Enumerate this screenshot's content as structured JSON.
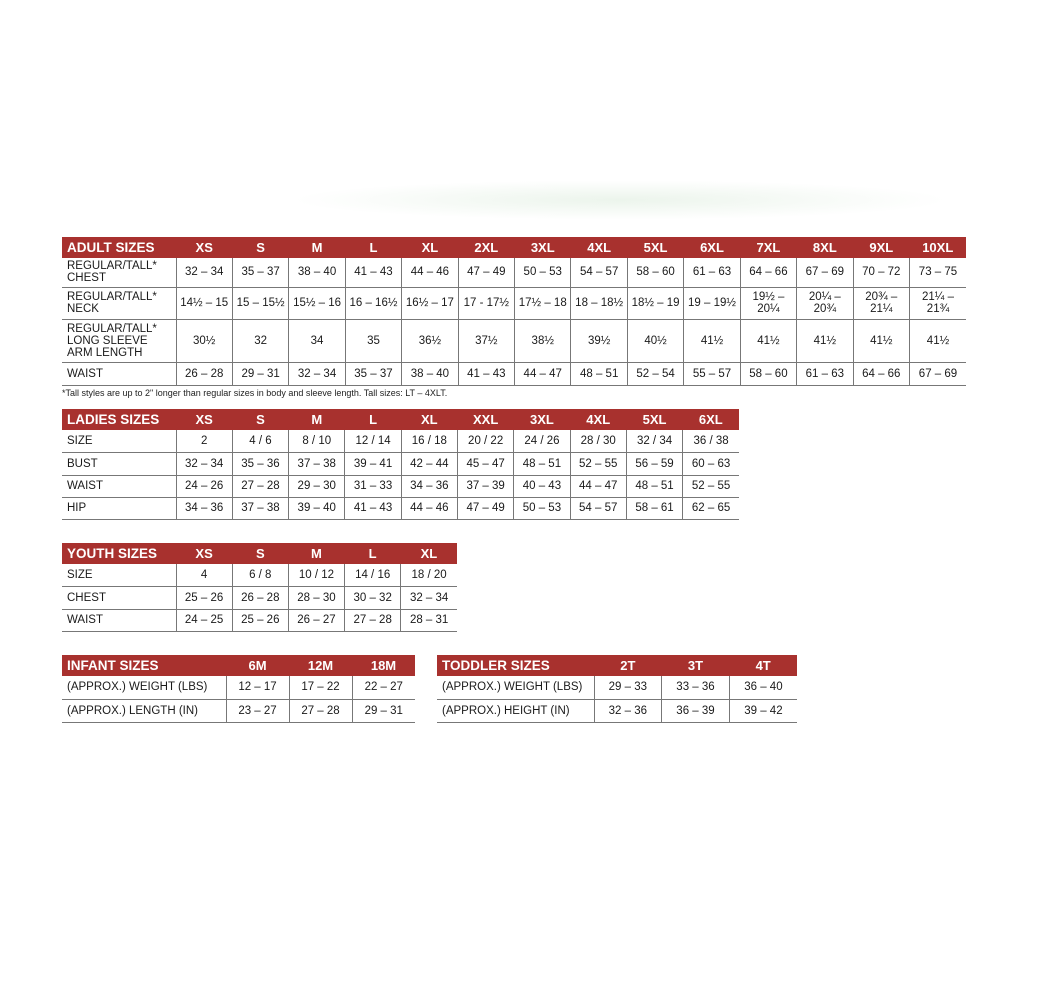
{
  "adult": {
    "title": "ADULT SIZES",
    "sizes": [
      "XS",
      "S",
      "M",
      "L",
      "XL",
      "2XL",
      "3XL",
      "4XL",
      "5XL",
      "6XL",
      "7XL",
      "8XL",
      "9XL",
      "10XL"
    ],
    "rows": [
      {
        "label": "REGULAR/TALL*\nCHEST",
        "values": [
          "32 – 34",
          "35 – 37",
          "38 – 40",
          "41 – 43",
          "44 – 46",
          "47 – 49",
          "50 – 53",
          "54 – 57",
          "58 – 60",
          "61 – 63",
          "64 – 66",
          "67 – 69",
          "70 – 72",
          "73 – 75"
        ]
      },
      {
        "label": "REGULAR/TALL*\nNECK",
        "values": [
          "14½ – 15",
          "15 – 15½",
          "15½ – 16",
          "16 – 16½",
          "16½ – 17",
          "17 - 17½",
          "17½ – 18",
          "18 – 18½",
          "18½ – 19",
          "19 – 19½",
          "19½ –\n20¼",
          "20¼ –\n20¾",
          "20¾ –\n21¼",
          "21¼ –\n21¾"
        ]
      },
      {
        "label": "REGULAR/TALL*\nLONG SLEEVE\nARM LENGTH",
        "values": [
          "30½",
          "32",
          "34",
          "35",
          "36½",
          "37½",
          "38½",
          "39½",
          "40½",
          "41½",
          "41½",
          "41½",
          "41½",
          "41½"
        ]
      },
      {
        "label": "WAIST",
        "values": [
          "26 – 28",
          "29 – 31",
          "32 – 34",
          "35 – 37",
          "38 – 40",
          "41 – 43",
          "44 – 47",
          "48 – 51",
          "52 – 54",
          "55 – 57",
          "58 – 60",
          "61 – 63",
          "64 – 66",
          "67 – 69"
        ]
      }
    ],
    "footnote": "*Tall styles are up to 2\" longer than regular sizes in body and sleeve length. Tall sizes: LT – 4XLT."
  },
  "ladies": {
    "title": "LADIES SIZES",
    "sizes": [
      "XS",
      "S",
      "M",
      "L",
      "XL",
      "XXL",
      "3XL",
      "4XL",
      "5XL",
      "6XL"
    ],
    "rows": [
      {
        "label": "SIZE",
        "values": [
          "2",
          "4 / 6",
          "8 / 10",
          "12 / 14",
          "16 / 18",
          "20 / 22",
          "24 / 26",
          "28 / 30",
          "32 / 34",
          "36 / 38"
        ]
      },
      {
        "label": "BUST",
        "values": [
          "32 – 34",
          "35 – 36",
          "37 – 38",
          "39 – 41",
          "42 – 44",
          "45 – 47",
          "48 – 51",
          "52 – 55",
          "56 – 59",
          "60 – 63"
        ]
      },
      {
        "label": "WAIST",
        "values": [
          "24 – 26",
          "27 – 28",
          "29 – 30",
          "31 – 33",
          "34 – 36",
          "37 – 39",
          "40 – 43",
          "44 – 47",
          "48 – 51",
          "52 – 55"
        ]
      },
      {
        "label": "HIP",
        "values": [
          "34 – 36",
          "37 – 38",
          "39 – 40",
          "41 – 43",
          "44 – 46",
          "47 – 49",
          "50 – 53",
          "54 – 57",
          "58 – 61",
          "62 – 65"
        ]
      }
    ]
  },
  "youth": {
    "title": "YOUTH SIZES",
    "sizes": [
      "XS",
      "S",
      "M",
      "L",
      "XL"
    ],
    "rows": [
      {
        "label": "SIZE",
        "values": [
          "4",
          "6 / 8",
          "10 / 12",
          "14 / 16",
          "18 / 20"
        ]
      },
      {
        "label": "CHEST",
        "values": [
          "25 – 26",
          "26 – 28",
          "28 – 30",
          "30 – 32",
          "32 – 34"
        ]
      },
      {
        "label": "WAIST",
        "values": [
          "24 – 25",
          "25 – 26",
          "26 – 27",
          "27 – 28",
          "28 – 31"
        ]
      }
    ]
  },
  "infant": {
    "title": "INFANT SIZES",
    "sizes": [
      "6M",
      "12M",
      "18M"
    ],
    "rows": [
      {
        "label": "(APPROX.) WEIGHT (LBS)",
        "values": [
          "12 – 17",
          "17 – 22",
          "22 – 27"
        ]
      },
      {
        "label": "(APPROX.) LENGTH (IN)",
        "values": [
          "23 – 27",
          "27 – 28",
          "29 – 31"
        ]
      }
    ]
  },
  "toddler": {
    "title": "TODDLER SIZES",
    "sizes": [
      "2T",
      "3T",
      "4T"
    ],
    "rows": [
      {
        "label": "(APPROX.) WEIGHT (LBS)",
        "values": [
          "29 – 33",
          "33 – 36",
          "36 – 40"
        ]
      },
      {
        "label": "(APPROX.) HEIGHT (IN)",
        "values": [
          "32 – 36",
          "36 – 39",
          "39 – 42"
        ]
      }
    ]
  },
  "colors": {
    "header": "#a8312e"
  }
}
